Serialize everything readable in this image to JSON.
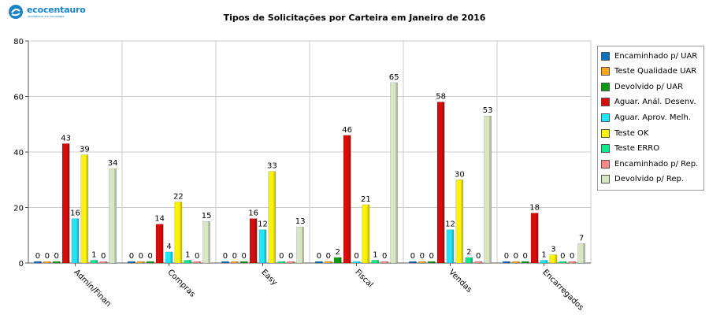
{
  "header": {
    "logo_name": "ecocentauro",
    "logo_tagline": "inteligência em tecnologia"
  },
  "chart_data": {
    "type": "bar",
    "title": "Tipos de Solicitações por Carteira em Janeiro de 2016",
    "xlabel": "",
    "ylabel": "",
    "ylim": [
      0,
      80
    ],
    "yticks": [
      0,
      20,
      40,
      60,
      80
    ],
    "grid": true,
    "legend_position": "right",
    "categories": [
      "Admin/Finan",
      "Compras",
      "Easy",
      "Fiscal",
      "Vendas",
      "Encarregados"
    ],
    "series": [
      {
        "name": "Encaminhado p/ UAR",
        "color": "#0a6fb8",
        "values": [
          0,
          0,
          0,
          0,
          0,
          0
        ]
      },
      {
        "name": "Teste Qualidade UAR",
        "color": "#f5a623",
        "values": [
          0,
          0,
          0,
          0,
          0,
          0
        ]
      },
      {
        "name": "Devolvido p/ UAR",
        "color": "#0f9a12",
        "values": [
          0,
          0,
          0,
          2,
          0,
          0
        ]
      },
      {
        "name": "Aguar. Anál. Desenv.",
        "color": "#d40d0d",
        "values": [
          43,
          14,
          16,
          46,
          58,
          18
        ]
      },
      {
        "name": "Aguar. Aprov. Melh.",
        "color": "#22e5f5",
        "values": [
          16,
          4,
          12,
          0,
          12,
          1
        ]
      },
      {
        "name": "Teste OK",
        "color": "#f8f20e",
        "values": [
          39,
          22,
          33,
          21,
          30,
          3
        ]
      },
      {
        "name": "Teste ERRO",
        "color": "#15e88a",
        "values": [
          1,
          1,
          0,
          1,
          2,
          0
        ]
      },
      {
        "name": "Encaminhado p/ Rep.",
        "color": "#f58a8a",
        "values": [
          0,
          0,
          0,
          0,
          0,
          0
        ]
      },
      {
        "name": "Devolvido p/ Rep.",
        "color": "#d9e6c6",
        "values": [
          34,
          15,
          13,
          65,
          53,
          7
        ]
      }
    ]
  }
}
